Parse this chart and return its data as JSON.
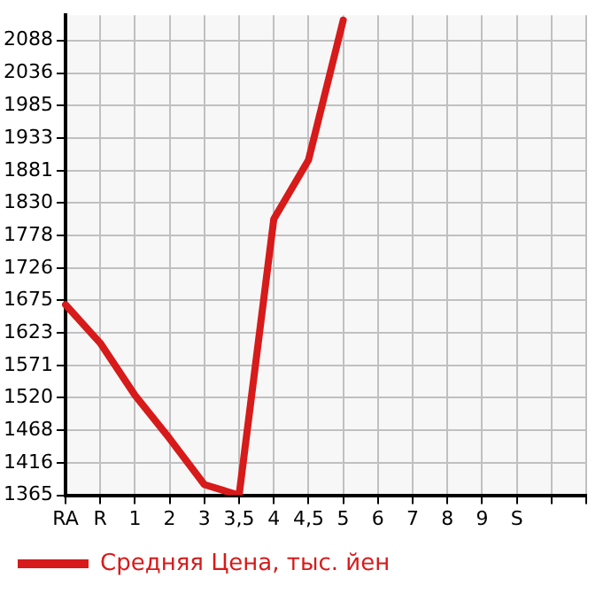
{
  "chart_data": {
    "type": "line",
    "categories": [
      "RA",
      "R",
      "1",
      "2",
      "3",
      "3,5",
      "4",
      "4,5",
      "5",
      "6",
      "7",
      "8",
      "9",
      "S",
      null,
      null
    ],
    "series": [
      {
        "name": "Средняя Цена, тыс. йен",
        "color": "#d71a1a",
        "values": [
          1668,
          1607,
          1524,
          1455,
          1382,
          1365,
          1804,
          1898,
          2120,
          null,
          null,
          null,
          null,
          null,
          null,
          null
        ]
      }
    ],
    "ylim": [
      1365,
      2128
    ],
    "yticks": [
      1365,
      1416,
      1468,
      1520,
      1571,
      1623,
      1675,
      1726,
      1778,
      1830,
      1881,
      1933,
      1985,
      2036,
      2088
    ],
    "grid": true,
    "legend": "bottom left",
    "marker": "none",
    "line_style": "solid"
  }
}
